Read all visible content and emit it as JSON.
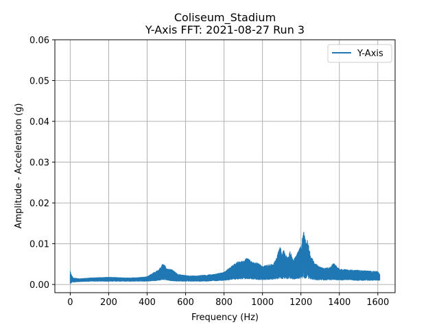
{
  "chart_data": {
    "type": "line",
    "title": "Coliseum_Stadium",
    "subtitle": "Y-Axis FFT: 2021-08-27 Run 3",
    "xlabel": "Frequency (Hz)",
    "ylabel": "Amplitude - Acceleration (g)",
    "xlim": [
      -80,
      1690
    ],
    "ylim": [
      -0.002,
      0.06
    ],
    "xticks": [
      0,
      200,
      400,
      600,
      800,
      1000,
      1200,
      1400,
      1600
    ],
    "yticks": [
      0.0,
      0.01,
      0.02,
      0.03,
      0.04,
      0.05,
      0.06
    ],
    "xtick_labels": [
      "0",
      "200",
      "400",
      "600",
      "800",
      "1000",
      "1200",
      "1400",
      "1600"
    ],
    "ytick_labels": [
      "0.00",
      "0.01",
      "0.02",
      "0.03",
      "0.04",
      "0.05",
      "0.06"
    ],
    "grid": true,
    "legend_position": "top-right",
    "series": [
      {
        "name": "Y-Axis",
        "color": "#1f77b4",
        "envelope": {
          "x": [
            0,
            5,
            15,
            50,
            100,
            150,
            200,
            250,
            300,
            350,
            400,
            430,
            460,
            480,
            490,
            510,
            530,
            560,
            600,
            650,
            700,
            750,
            800,
            840,
            870,
            900,
            920,
            950,
            980,
            1000,
            1030,
            1060,
            1080,
            1095,
            1100,
            1110,
            1130,
            1145,
            1160,
            1180,
            1200,
            1215,
            1225,
            1235,
            1250,
            1270,
            1290,
            1320,
            1350,
            1370,
            1400,
            1450,
            1500,
            1550,
            1600,
            1610
          ],
          "upper": [
            0.0032,
            0.0025,
            0.0016,
            0.0014,
            0.0016,
            0.0017,
            0.0018,
            0.0017,
            0.0016,
            0.0017,
            0.0019,
            0.0028,
            0.0036,
            0.005,
            0.0048,
            0.0038,
            0.0036,
            0.0025,
            0.0022,
            0.0021,
            0.0023,
            0.0025,
            0.003,
            0.0045,
            0.0055,
            0.0058,
            0.0065,
            0.0055,
            0.0052,
            0.0045,
            0.0048,
            0.0052,
            0.0078,
            0.0098,
            0.007,
            0.0085,
            0.0065,
            0.0082,
            0.006,
            0.0075,
            0.0095,
            0.013,
            0.0105,
            0.011,
            0.007,
            0.0055,
            0.0045,
            0.004,
            0.0042,
            0.0052,
            0.0038,
            0.0036,
            0.0035,
            0.0033,
            0.0032,
            0.0025
          ],
          "lower": [
            0.0,
            0.0004,
            0.0006,
            0.0007,
            0.0008,
            0.0008,
            0.0008,
            0.0008,
            0.0008,
            0.0008,
            0.0008,
            0.0009,
            0.001,
            0.0012,
            0.0012,
            0.001,
            0.0009,
            0.0008,
            0.0008,
            0.0008,
            0.0008,
            0.0009,
            0.001,
            0.0012,
            0.0013,
            0.0013,
            0.0014,
            0.0013,
            0.0012,
            0.0012,
            0.0012,
            0.0013,
            0.0014,
            0.0015,
            0.0014,
            0.0014,
            0.0014,
            0.0014,
            0.0013,
            0.0014,
            0.0015,
            0.0016,
            0.0015,
            0.0015,
            0.0013,
            0.0012,
            0.0011,
            0.0011,
            0.0011,
            0.0012,
            0.0011,
            0.0011,
            0.001,
            0.001,
            0.001,
            0.001
          ]
        }
      }
    ]
  }
}
